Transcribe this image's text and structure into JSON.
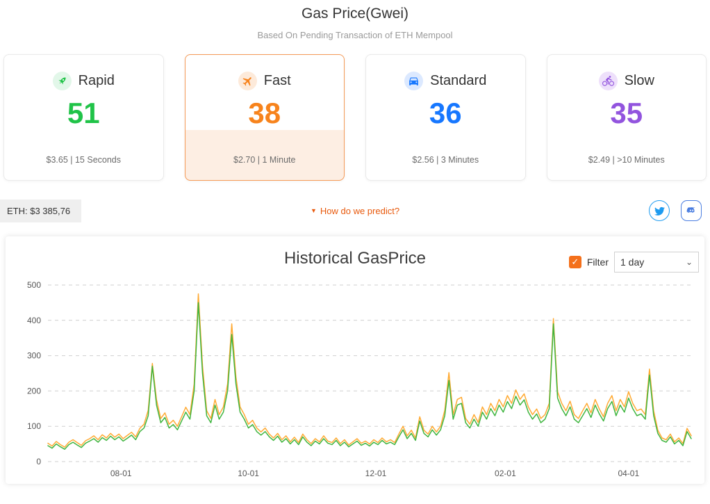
{
  "header": {
    "title": "Gas Price(Gwei)",
    "subtitle": "Based On Pending Transaction of ETH Mempool"
  },
  "cards": [
    {
      "label": "Rapid",
      "value": "51",
      "detail": "$3.65 | 15 Seconds",
      "color": "#20c348",
      "tint": "#e2f7e9",
      "icon": "rocket-icon",
      "selected": false
    },
    {
      "label": "Fast",
      "value": "38",
      "detail": "$2.70 | 1 Minute",
      "color": "#f7831c",
      "tint": "#fdeada",
      "icon": "plane-icon",
      "selected": true
    },
    {
      "label": "Standard",
      "value": "36",
      "detail": "$2.56 | 3 Minutes",
      "color": "#1677ff",
      "tint": "#dce9ff",
      "icon": "car-icon",
      "selected": false
    },
    {
      "label": "Slow",
      "value": "35",
      "detail": "$2.49 | >10 Minutes",
      "color": "#9254de",
      "tint": "#eee0fb",
      "icon": "bike-icon",
      "selected": false
    }
  ],
  "info_bar": {
    "eth_price": "ETH: $3 385,76",
    "predict_caret": "▼",
    "predict_link": "How do we predict?",
    "predict_color": "#e8590c"
  },
  "social": {
    "twitter_color": "#1d9bf0",
    "discord_color": "#4a7de0"
  },
  "chart": {
    "title": "Historical GasPrice",
    "filter_label": "Filter",
    "filter_checked": true,
    "checkmark": "✓",
    "checkbox_color": "#f4701b",
    "range_selected": "1 day",
    "range_chevron": "⌄"
  },
  "chart_data": {
    "type": "line",
    "title": "Historical GasPrice",
    "x_unit": "days from chart start",
    "x_start": 0,
    "x_step": 2,
    "x_range": [
      0,
      308
    ],
    "x_tick_positions": [
      35,
      96,
      157,
      219,
      278
    ],
    "x_tick_labels": [
      "08-01",
      "10-01",
      "12-01",
      "02-01",
      "04-01"
    ],
    "ylim": [
      0,
      500
    ],
    "y_ticks": [
      0,
      100,
      200,
      300,
      400,
      500
    ],
    "grid": "horizontal-dashed",
    "legend": "none",
    "series": [
      {
        "name": "gas-price-upper",
        "color": "#ffaa33",
        "values": [
          52,
          44,
          57,
          48,
          41,
          55,
          62,
          54,
          46,
          59,
          65,
          73,
          62,
          76,
          67,
          80,
          69,
          78,
          65,
          74,
          83,
          70,
          94,
          106,
          145,
          278,
          175,
          122,
          138,
          106,
          117,
          100,
          127,
          154,
          133,
          220,
          475,
          272,
          144,
          122,
          176,
          133,
          155,
          220,
          390,
          240,
          155,
          133,
          106,
          117,
          95,
          84,
          95,
          78,
          67,
          80,
          62,
          73,
          56,
          69,
          54,
          78,
          62,
          51,
          65,
          56,
          73,
          58,
          54,
          67,
          51,
          62,
          47,
          56,
          65,
          52,
          58,
          50,
          62,
          54,
          67,
          56,
          62,
          54,
          78,
          100,
          73,
          89,
          67,
          127,
          89,
          78,
          100,
          84,
          100,
          145,
          252,
          133,
          176,
          182,
          122,
          106,
          133,
          111,
          155,
          133,
          165,
          144,
          176,
          155,
          187,
          165,
          203,
          176,
          192,
          155,
          133,
          149,
          122,
          133,
          165,
          405,
          198,
          165,
          144,
          171,
          133,
          122,
          144,
          165,
          138,
          176,
          149,
          127,
          165,
          187,
          144,
          176,
          155,
          198,
          165,
          144,
          149,
          133,
          262,
          144,
          89,
          67,
          62,
          78,
          56,
          67,
          51,
          94,
          73
        ]
      },
      {
        "name": "gas-price-lower",
        "color": "#3fb53f",
        "values": [
          45,
          38,
          50,
          42,
          35,
          48,
          55,
          47,
          40,
          52,
          58,
          65,
          55,
          68,
          60,
          72,
          62,
          70,
          58,
          66,
          75,
          62,
          85,
          95,
          130,
          270,
          160,
          110,
          125,
          95,
          105,
          90,
          115,
          140,
          120,
          200,
          450,
          250,
          130,
          110,
          160,
          120,
          140,
          200,
          360,
          220,
          140,
          120,
          95,
          105,
          85,
          75,
          85,
          70,
          60,
          72,
          55,
          65,
          50,
          62,
          48,
          70,
          55,
          45,
          58,
          50,
          65,
          52,
          48,
          60,
          45,
          55,
          42,
          50,
          58,
          46,
          52,
          44,
          55,
          48,
          60,
          50,
          55,
          48,
          70,
          90,
          65,
          80,
          60,
          115,
          80,
          70,
          90,
          75,
          90,
          130,
          230,
          120,
          160,
          165,
          110,
          95,
          120,
          100,
          140,
          120,
          150,
          130,
          160,
          140,
          170,
          150,
          185,
          160,
          175,
          140,
          120,
          135,
          110,
          120,
          150,
          390,
          180,
          150,
          130,
          155,
          120,
          110,
          130,
          150,
          125,
          160,
          135,
          115,
          150,
          170,
          130,
          160,
          140,
          180,
          150,
          130,
          135,
          120,
          245,
          130,
          80,
          60,
          55,
          70,
          50,
          60,
          45,
          85,
          65
        ]
      }
    ]
  }
}
